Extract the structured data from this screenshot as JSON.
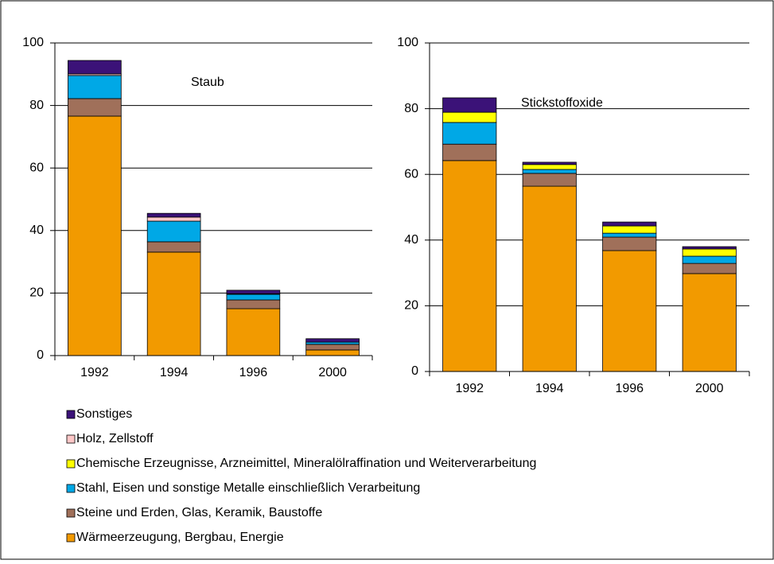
{
  "chart_data": [
    {
      "type": "bar",
      "stacked": true,
      "annotation": "Staub",
      "categories": [
        "1992",
        "1994",
        "1996",
        "2000"
      ],
      "ylim": [
        0,
        100
      ],
      "yticks": [
        0,
        20,
        40,
        60,
        80,
        100
      ],
      "grid": true,
      "series": [
        {
          "name": "Wärmeerzeugung, Bergbau, Energie",
          "color": "#f29a00",
          "values": [
            76.6,
            33.1,
            15.0,
            1.8
          ]
        },
        {
          "name": "Steine und Erden, Glas, Keramik, Baustoffe",
          "color": "#a0705a",
          "values": [
            5.6,
            3.3,
            2.8,
            1.8
          ]
        },
        {
          "name": "Stahl, Eisen und sonstige Metalle einschließlich Verarbeitung",
          "color": "#00a8e6",
          "values": [
            7.4,
            6.6,
            1.8,
            0.7
          ]
        },
        {
          "name": "Chemische Erzeugnisse, Arzneimittel, Mineralölraffination und Weiterverarbeitung",
          "color": "#ffff00",
          "values": [
            0,
            0,
            0,
            0
          ]
        },
        {
          "name": "Holz, Zellstoff",
          "color": "#ffc8c8",
          "values": [
            0.5,
            1.3,
            0.2,
            0
          ]
        },
        {
          "name": "Sonstiges",
          "color": "#3b1278",
          "values": [
            4.3,
            1.2,
            1.1,
            1.1
          ]
        }
      ]
    },
    {
      "type": "bar",
      "stacked": true,
      "annotation": "Stickstoffoxide",
      "categories": [
        "1992",
        "1994",
        "1996",
        "2000"
      ],
      "ylim": [
        0,
        100
      ],
      "yticks": [
        0,
        20,
        40,
        60,
        80,
        100
      ],
      "grid": true,
      "series": [
        {
          "color": "#f29a00",
          "values": [
            64.2,
            56.4,
            36.8,
            29.8
          ]
        },
        {
          "color": "#a0705a",
          "values": [
            5.0,
            3.9,
            4.1,
            3.1
          ]
        },
        {
          "color": "#00a8e6",
          "values": [
            6.6,
            1.2,
            1.2,
            2.2
          ]
        },
        {
          "color": "#ffff00",
          "values": [
            3.1,
            1.5,
            2.2,
            2.2
          ]
        },
        {
          "color": "#ffc8c8",
          "values": [
            0,
            0,
            0,
            0
          ]
        },
        {
          "color": "#3b1278",
          "values": [
            4.4,
            0.7,
            1.2,
            0.7
          ]
        }
      ]
    }
  ]
}
